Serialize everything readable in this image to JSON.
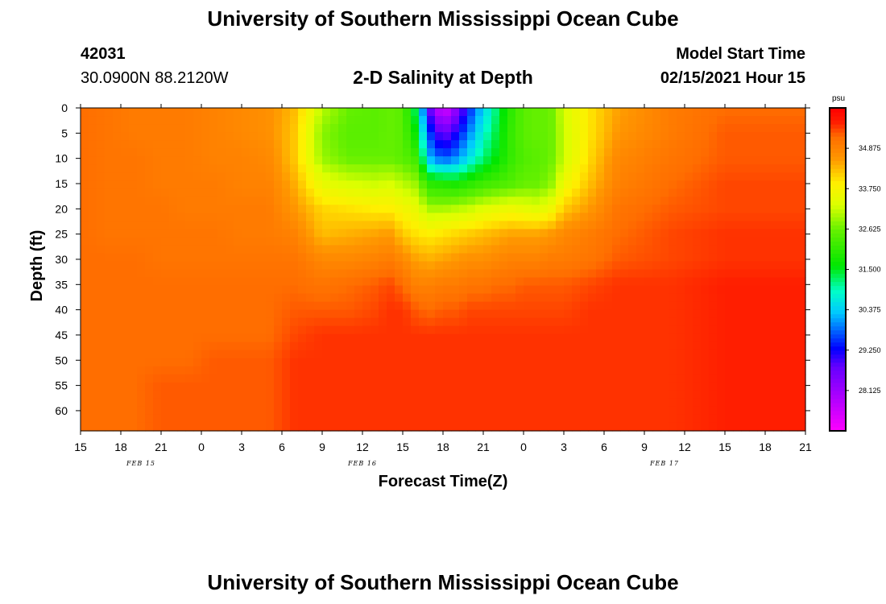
{
  "header": {
    "title": "University of Southern Mississippi Ocean Cube",
    "station_id": "42031",
    "location": "30.0900N 88.2120W",
    "plot_title": "2-D Salinity at Depth",
    "start_label": "Model Start Time",
    "start_time": "02/15/2021 Hour 15"
  },
  "footer": {
    "title": "University of Southern Mississippi Ocean Cube"
  },
  "chart_data": {
    "type": "heatmap",
    "xlabel": "Forecast Time(Z)",
    "ylabel": "Depth (ft)",
    "x_hours": [
      0,
      3,
      6,
      9,
      12,
      15,
      18,
      21,
      24,
      27,
      30,
      33,
      36,
      39,
      42,
      45,
      48,
      51,
      54
    ],
    "x_tick_labels": [
      "15",
      "18",
      "21",
      "0",
      "3",
      "6",
      "9",
      "12",
      "15",
      "18",
      "21",
      "0",
      "3",
      "6",
      "9",
      "12",
      "15",
      "18",
      "21"
    ],
    "date_labels": [
      {
        "text": "FEB 15",
        "hour": 4.5
      },
      {
        "text": "FEB 16",
        "hour": 21
      },
      {
        "text": "FEB 17",
        "hour": 43.5
      }
    ],
    "xlim": [
      0,
      54
    ],
    "y_ticks": [
      0,
      5,
      10,
      15,
      20,
      25,
      30,
      35,
      40,
      45,
      50,
      55,
      60
    ],
    "ylim": [
      0,
      64
    ],
    "colorbar": {
      "unit": "psu",
      "min": 27,
      "max": 36,
      "tick_labels": [
        "34.875",
        "33.750",
        "32.625",
        "31.500",
        "30.375",
        "29.250",
        "28.125"
      ],
      "tick_values": [
        34.875,
        33.75,
        32.625,
        31.5,
        30.375,
        29.25,
        28.125
      ]
    },
    "depths": [
      0,
      5,
      10,
      15,
      20,
      25,
      30,
      35,
      40,
      45,
      50,
      55,
      60,
      64
    ],
    "grid": [
      [
        35.2,
        35.2,
        35.2,
        35.2,
        35.2,
        35.2,
        35.2,
        35.2,
        35.2,
        35.2,
        35.2,
        35.2,
        35.2,
        35.2
      ],
      [
        35.1,
        35.1,
        35.1,
        35.1,
        35.1,
        35.1,
        35.2,
        35.2,
        35.2,
        35.2,
        35.2,
        35.2,
        35.2,
        35.2
      ],
      [
        35.0,
        35.0,
        35.1,
        35.1,
        35.1,
        35.1,
        35.2,
        35.2,
        35.2,
        35.2,
        35.2,
        35.2,
        35.2,
        35.2
      ],
      [
        35.0,
        35.0,
        35.0,
        35.0,
        35.1,
        35.1,
        35.1,
        35.2,
        35.2,
        35.2,
        35.2,
        35.3,
        35.3,
        35.3
      ],
      [
        35.0,
        35.0,
        35.0,
        35.0,
        35.0,
        35.1,
        35.1,
        35.2,
        35.2,
        35.2,
        35.2,
        35.3,
        35.3,
        35.3
      ],
      [
        34.9,
        34.9,
        34.9,
        35.0,
        35.0,
        35.1,
        35.1,
        35.2,
        35.2,
        35.2,
        35.3,
        35.3,
        35.3,
        35.3
      ],
      [
        34.8,
        34.8,
        34.9,
        34.9,
        35.0,
        35.0,
        35.1,
        35.2,
        35.2,
        35.2,
        35.3,
        35.3,
        35.3,
        35.3
      ],
      [
        34.7,
        34.7,
        34.8,
        34.9,
        35.0,
        35.0,
        35.1,
        35.2,
        35.2,
        35.2,
        35.3,
        35.3,
        35.3,
        35.3
      ],
      [
        34.3,
        34.2,
        34.2,
        34.4,
        34.6,
        34.9,
        35.1,
        35.2,
        35.3,
        35.4,
        35.5,
        35.5,
        35.5,
        35.5
      ],
      [
        33.1,
        32.8,
        32.9,
        33.5,
        34.1,
        34.3,
        34.8,
        35.1,
        35.3,
        35.5,
        35.5,
        35.5,
        35.5,
        35.5
      ],
      [
        32.6,
        32.5,
        32.6,
        33.3,
        34.0,
        34.4,
        34.8,
        35.2,
        35.3,
        35.5,
        35.5,
        35.5,
        35.5,
        35.5
      ],
      [
        32.5,
        32.5,
        32.6,
        33.2,
        33.9,
        34.5,
        34.9,
        35.3,
        35.4,
        35.5,
        35.5,
        35.5,
        35.5,
        35.5
      ],
      [
        32.6,
        32.6,
        32.6,
        33.3,
        33.9,
        34.6,
        35.0,
        35.4,
        35.5,
        35.5,
        35.5,
        35.5,
        35.5,
        35.5
      ],
      [
        32.5,
        32.5,
        32.5,
        33.1,
        33.7,
        34.2,
        34.8,
        35.2,
        35.5,
        35.5,
        35.5,
        35.5,
        35.5,
        35.5
      ],
      [
        31.2,
        31.6,
        32.2,
        32.9,
        33.5,
        34.0,
        34.5,
        34.9,
        35.3,
        35.5,
        35.5,
        35.5,
        35.5,
        35.5
      ],
      [
        28.8,
        29.6,
        30.2,
        32.0,
        33.0,
        33.9,
        34.4,
        34.9,
        35.2,
        35.5,
        35.5,
        35.5,
        35.5,
        35.5
      ],
      [
        27.3,
        28.6,
        29.7,
        31.9,
        33.0,
        34.0,
        34.5,
        35.0,
        35.3,
        35.5,
        35.5,
        35.5,
        35.5,
        35.5
      ],
      [
        28.3,
        29.2,
        30.0,
        31.8,
        33.1,
        34.1,
        34.6,
        35.0,
        35.3,
        35.5,
        35.5,
        35.5,
        35.5,
        35.5
      ],
      [
        29.5,
        30.0,
        30.6,
        32.0,
        33.2,
        34.2,
        34.7,
        35.1,
        35.4,
        35.5,
        35.5,
        35.5,
        35.5,
        35.5
      ],
      [
        30.4,
        30.8,
        31.2,
        32.2,
        33.4,
        34.3,
        34.7,
        35.1,
        35.4,
        35.5,
        35.5,
        35.5,
        35.5,
        35.5
      ],
      [
        31.2,
        31.4,
        31.6,
        32.3,
        33.5,
        34.4,
        34.8,
        35.2,
        35.4,
        35.5,
        35.5,
        35.5,
        35.5,
        35.5
      ],
      [
        32.0,
        32.1,
        32.1,
        32.4,
        33.6,
        34.5,
        34.9,
        35.2,
        35.4,
        35.5,
        35.5,
        35.5,
        35.5,
        35.5
      ],
      [
        32.5,
        32.5,
        32.4,
        32.6,
        33.5,
        34.5,
        34.9,
        35.3,
        35.4,
        35.5,
        35.5,
        35.5,
        35.5,
        35.5
      ],
      [
        32.6,
        32.6,
        32.5,
        32.6,
        33.4,
        34.5,
        34.9,
        35.3,
        35.4,
        35.5,
        35.5,
        35.5,
        35.5,
        35.5
      ],
      [
        32.6,
        32.6,
        32.6,
        32.8,
        33.6,
        34.6,
        35.0,
        35.3,
        35.4,
        35.5,
        35.5,
        35.5,
        35.5,
        35.5
      ],
      [
        33.3,
        33.2,
        33.2,
        33.6,
        34.2,
        34.8,
        35.0,
        35.3,
        35.4,
        35.5,
        35.5,
        35.5,
        35.5,
        35.5
      ],
      [
        34.0,
        34.0,
        34.1,
        34.3,
        34.6,
        35.0,
        35.1,
        35.4,
        35.5,
        35.5,
        35.5,
        35.5,
        35.5,
        35.5
      ],
      [
        34.5,
        34.6,
        34.8,
        34.9,
        35.1,
        35.2,
        35.3,
        35.5,
        35.5,
        35.5,
        35.5,
        35.5,
        35.5,
        35.5
      ],
      [
        35.0,
        35.0,
        35.1,
        35.2,
        35.3,
        35.4,
        35.4,
        35.5,
        35.5,
        35.5,
        35.5,
        35.5,
        35.5,
        35.5
      ],
      [
        35.2,
        35.3,
        35.3,
        35.4,
        35.4,
        35.5,
        35.5,
        35.6,
        35.6,
        35.6,
        35.6,
        35.6,
        35.6,
        35.6
      ]
    ],
    "grid_hours": [
      0,
      2,
      4,
      6,
      8,
      10,
      12,
      14,
      16,
      18,
      20,
      22,
      23,
      24,
      25,
      26,
      27,
      28,
      29,
      30,
      31,
      32,
      33,
      34,
      35,
      36,
      38,
      40,
      44,
      48
    ],
    "grid_note": ""
  }
}
